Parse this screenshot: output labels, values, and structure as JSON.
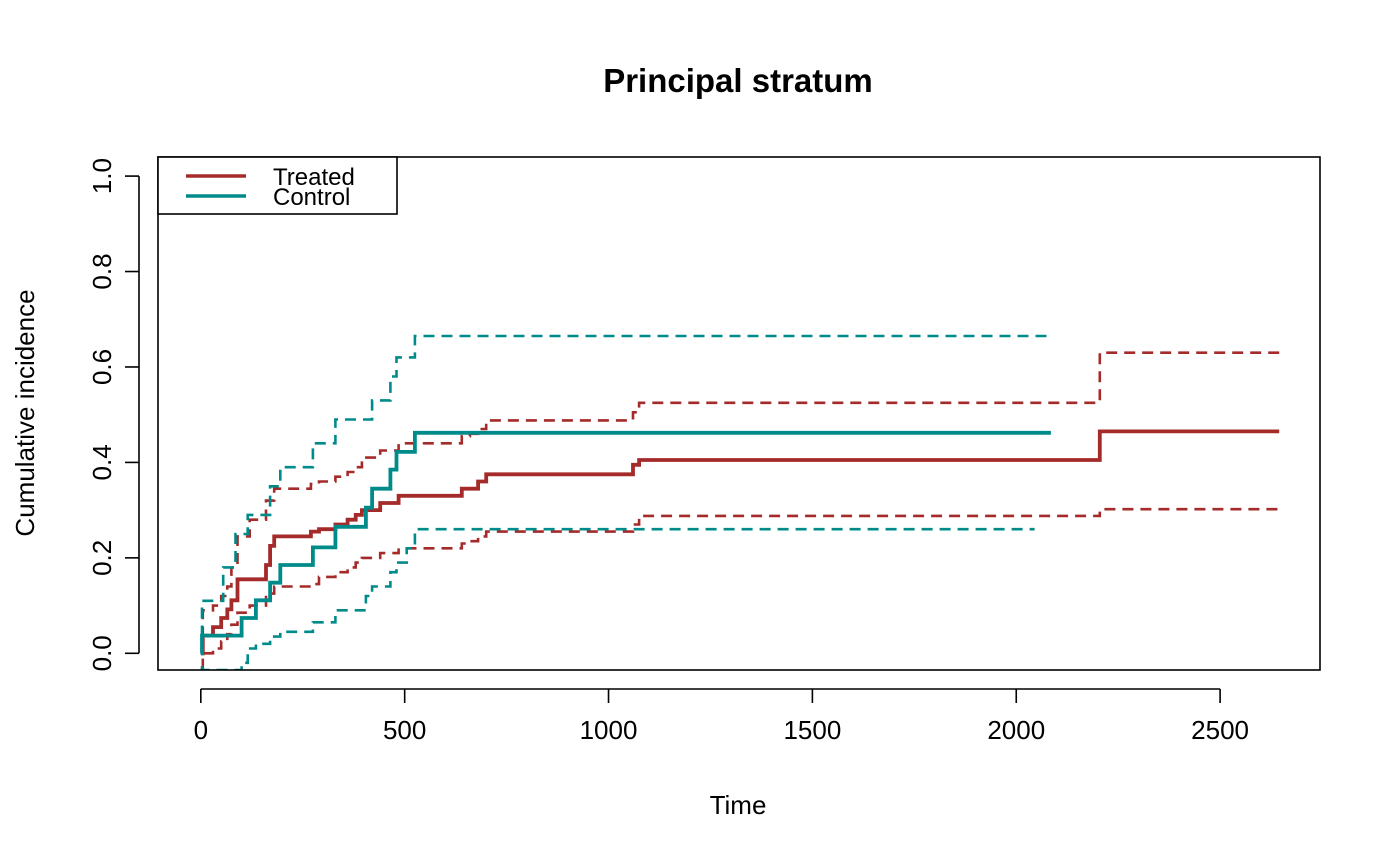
{
  "chart_data": {
    "type": "line",
    "title": "Principal stratum",
    "xlabel": "Time",
    "ylabel": "Cumulative incidence",
    "xlim": [
      -105,
      2745
    ],
    "ylim": [
      -0.035,
      1.04
    ],
    "x_ticks": [
      0,
      500,
      1000,
      1500,
      2000,
      2500
    ],
    "x_tick_labels": [
      "0",
      "500",
      "1000",
      "1500",
      "2000",
      "2500"
    ],
    "y_ticks": [
      0.0,
      0.2,
      0.4,
      0.6,
      0.8,
      1.0
    ],
    "y_tick_labels": [
      "0.0",
      "0.2",
      "0.4",
      "0.6",
      "0.8",
      "1.0"
    ],
    "grid": false,
    "legend": {
      "position": "top-left",
      "entries": [
        "Treated",
        "Control"
      ]
    },
    "colors": {
      "Treated": "#A52A2A",
      "Control": "#008B8B"
    },
    "series": [
      {
        "name": "Treated",
        "style": "solid",
        "step": true,
        "x": [
          0,
          5,
          30,
          50,
          65,
          75,
          90,
          160,
          170,
          180,
          270,
          290,
          330,
          360,
          380,
          395,
          440,
          485,
          640,
          660,
          680,
          700,
          1060,
          1075,
          2205,
          2645
        ],
        "y": [
          0.0,
          0.037,
          0.055,
          0.074,
          0.092,
          0.111,
          0.155,
          0.185,
          0.225,
          0.245,
          0.255,
          0.26,
          0.27,
          0.28,
          0.29,
          0.3,
          0.315,
          0.33,
          0.345,
          0.345,
          0.36,
          0.375,
          0.395,
          0.405,
          0.465,
          0.465
        ]
      },
      {
        "name": "Treated upper CI",
        "style": "dashed",
        "step": true,
        "x": [
          0,
          5,
          30,
          50,
          65,
          75,
          90,
          120,
          160,
          180,
          270,
          290,
          330,
          360,
          380,
          395,
          440,
          485,
          640,
          660,
          680,
          700,
          1060,
          1075,
          2205,
          2645
        ],
        "y": [
          0.0,
          0.09,
          0.1,
          0.12,
          0.14,
          0.18,
          0.245,
          0.28,
          0.32,
          0.345,
          0.355,
          0.36,
          0.37,
          0.38,
          0.39,
          0.41,
          0.425,
          0.44,
          0.455,
          0.46,
          0.47,
          0.488,
          0.505,
          0.525,
          0.63,
          0.63
        ]
      },
      {
        "name": "Treated lower CI",
        "style": "dashed",
        "step": true,
        "x": [
          0,
          5,
          30,
          50,
          65,
          75,
          90,
          120,
          160,
          180,
          270,
          290,
          330,
          360,
          380,
          395,
          440,
          485,
          640,
          660,
          680,
          700,
          1060,
          1075,
          2205,
          2645
        ],
        "y": [
          -0.03,
          0.0,
          0.01,
          0.025,
          0.04,
          0.06,
          0.085,
          0.1,
          0.125,
          0.14,
          0.145,
          0.16,
          0.17,
          0.18,
          0.19,
          0.2,
          0.21,
          0.22,
          0.23,
          0.235,
          0.245,
          0.255,
          0.27,
          0.288,
          0.302,
          0.302
        ]
      },
      {
        "name": "Control",
        "style": "solid",
        "step": true,
        "x": [
          0,
          3,
          85,
          100,
          115,
          135,
          170,
          195,
          275,
          330,
          405,
          420,
          465,
          480,
          505,
          525,
          2085
        ],
        "y": [
          0.0,
          0.037,
          0.037,
          0.074,
          0.074,
          0.111,
          0.148,
          0.185,
          0.222,
          0.265,
          0.305,
          0.345,
          0.385,
          0.422,
          0.422,
          0.462,
          0.462
        ]
      },
      {
        "name": "Control upper CI",
        "style": "dashed",
        "step": true,
        "x": [
          0,
          3,
          55,
          85,
          115,
          135,
          170,
          195,
          275,
          330,
          405,
          420,
          465,
          480,
          505,
          525,
          2085
        ],
        "y": [
          0.0,
          0.11,
          0.18,
          0.25,
          0.29,
          0.29,
          0.35,
          0.39,
          0.44,
          0.49,
          0.49,
          0.53,
          0.58,
          0.62,
          0.62,
          0.665,
          0.665
        ]
      },
      {
        "name": "Control lower CI",
        "style": "dashed",
        "step": true,
        "x": [
          0,
          3,
          85,
          100,
          115,
          135,
          170,
          195,
          275,
          330,
          405,
          420,
          465,
          480,
          505,
          525,
          2045
        ],
        "y": [
          -0.03,
          -0.035,
          -0.035,
          -0.02,
          0.01,
          0.02,
          0.035,
          0.045,
          0.065,
          0.09,
          0.12,
          0.14,
          0.17,
          0.19,
          0.22,
          0.26,
          0.26
        ]
      }
    ]
  }
}
